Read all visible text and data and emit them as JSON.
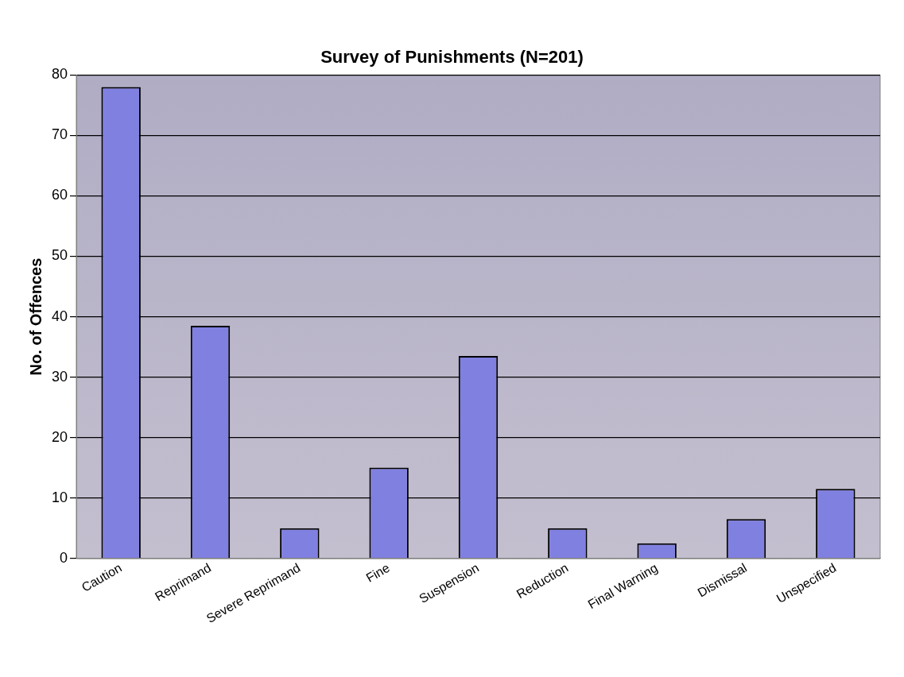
{
  "chart_data": {
    "type": "bar",
    "title": "Survey of Punishments (N=201)",
    "ylabel": "No. of Offences",
    "categories": [
      "Caution",
      "Reprimand",
      "Severe Reprimand",
      "Fine",
      "Suspension",
      "Reduction",
      "Final Warning",
      "Dismissal",
      "Unspecified"
    ],
    "values": [
      78,
      38.5,
      5,
      15,
      33.5,
      5,
      2.5,
      6.5,
      11.5
    ],
    "color": "#8080e0",
    "ylim": [
      0,
      80
    ],
    "yticks": [
      0,
      10,
      20,
      30,
      40,
      50,
      60,
      70,
      80
    ],
    "grid": "y",
    "legend": false
  }
}
